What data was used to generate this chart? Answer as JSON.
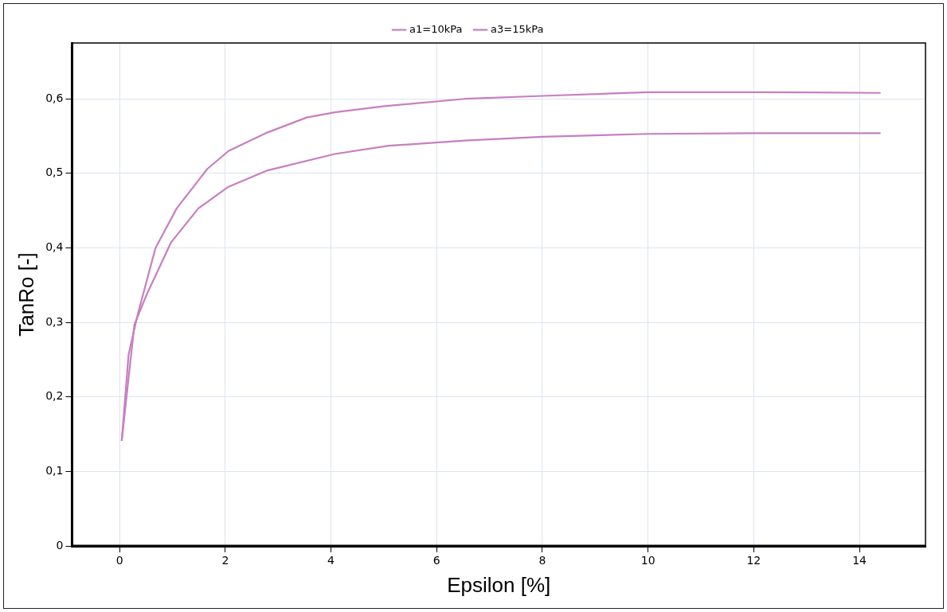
{
  "chart_data": {
    "type": "line",
    "xlabel": "Epsilon [%]",
    "ylabel": "TanRo [-]",
    "legend": "top",
    "grid": true,
    "marker": "none",
    "line_style": "solid",
    "xlim": [
      -0.9,
      15.25
    ],
    "ylim": [
      0,
      0.675
    ],
    "xticks": [
      0,
      2,
      4,
      6,
      8,
      10,
      12,
      14
    ],
    "yticks": [
      0,
      {
        "value": 0.1,
        "label": "0,1"
      },
      {
        "value": 0.2,
        "label": "0,2"
      },
      {
        "value": 0.3,
        "label": "0,3"
      },
      {
        "value": 0.4,
        "label": "0,4"
      },
      {
        "value": 0.5,
        "label": "0,5"
      },
      {
        "value": 0.6,
        "label": "0,6"
      }
    ],
    "series": [
      {
        "name": "a1=10kPa",
        "color": "#c77fc0",
        "x": [
          0.04,
          0.17,
          0.34,
          0.68,
          1.08,
          1.66,
          2.06,
          2.8,
          3.54,
          4.07,
          4.98,
          6.53,
          8,
          10,
          12,
          14.4
        ],
        "values": [
          0.141,
          0.257,
          0.31,
          0.4,
          0.453,
          0.506,
          0.53,
          0.555,
          0.575,
          0.582,
          0.59,
          0.6,
          0.604,
          0.609,
          0.609,
          0.608
        ]
      },
      {
        "name": "a3=15kPa",
        "color": "#c77fc0",
        "x": [
          0.04,
          0.28,
          0.51,
          0.97,
          1.49,
          2.06,
          2.8,
          4.07,
          5.09,
          6.53,
          8,
          10,
          12,
          14.4
        ],
        "values": [
          0.141,
          0.297,
          0.337,
          0.407,
          0.453,
          0.482,
          0.504,
          0.526,
          0.537,
          0.544,
          0.549,
          0.553,
          0.554,
          0.554
        ]
      }
    ]
  }
}
